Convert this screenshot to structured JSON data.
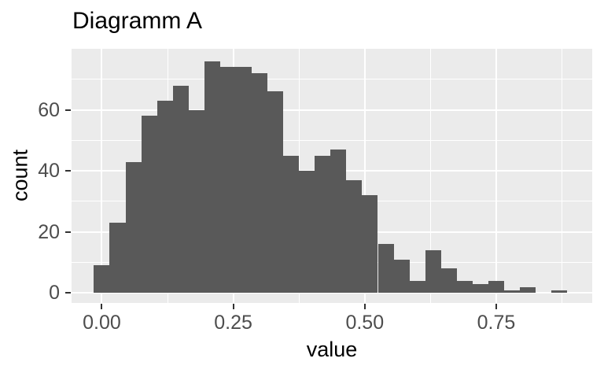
{
  "title": "Diagramm A",
  "style": {
    "bar_color": "#595959",
    "panel_bg": "#EBEBEB",
    "grid_color": "#FFFFFF",
    "tick_mark_color": "#333333",
    "tick_label_color": "#4D4D4D",
    "title_color": "#000000",
    "axis_title_color": "#000000",
    "page_bg": "#FFFFFF"
  },
  "chart_data": {
    "type": "bar",
    "subtype": "histogram",
    "title": "Diagramm A",
    "xlabel": "value",
    "ylabel": "count",
    "bin_width": 0.03,
    "bin_centers": [
      0.0,
      0.03,
      0.06,
      0.09,
      0.12,
      0.15,
      0.18,
      0.21,
      0.24,
      0.27,
      0.3,
      0.33,
      0.36,
      0.39,
      0.42,
      0.45,
      0.48,
      0.51,
      0.54,
      0.57,
      0.6,
      0.63,
      0.66,
      0.69,
      0.72,
      0.75,
      0.78,
      0.81,
      0.84,
      0.87
    ],
    "values": [
      9,
      23,
      43,
      58,
      63,
      68,
      60,
      76,
      74,
      74,
      72,
      66,
      45,
      40,
      45,
      47,
      37,
      32,
      16,
      11,
      4,
      14,
      8,
      4,
      3,
      4,
      1,
      2,
      0,
      1
    ],
    "total_count": 1000,
    "x_ticks": [
      {
        "value": 0.0,
        "label": "0.00"
      },
      {
        "value": 0.25,
        "label": "0.25"
      },
      {
        "value": 0.5,
        "label": "0.50"
      },
      {
        "value": 0.75,
        "label": "0.75"
      }
    ],
    "y_ticks": [
      {
        "value": 0,
        "label": "0"
      },
      {
        "value": 20,
        "label": "20"
      },
      {
        "value": 40,
        "label": "40"
      },
      {
        "value": 60,
        "label": "60"
      }
    ],
    "x_minor": [
      0.125,
      0.375,
      0.625,
      0.875
    ],
    "y_minor": [
      10,
      30,
      50,
      70
    ],
    "xlim": [
      -0.0575,
      0.9325
    ],
    "ylim": [
      -3.25,
      80
    ],
    "grid": "on",
    "legend": "none"
  }
}
